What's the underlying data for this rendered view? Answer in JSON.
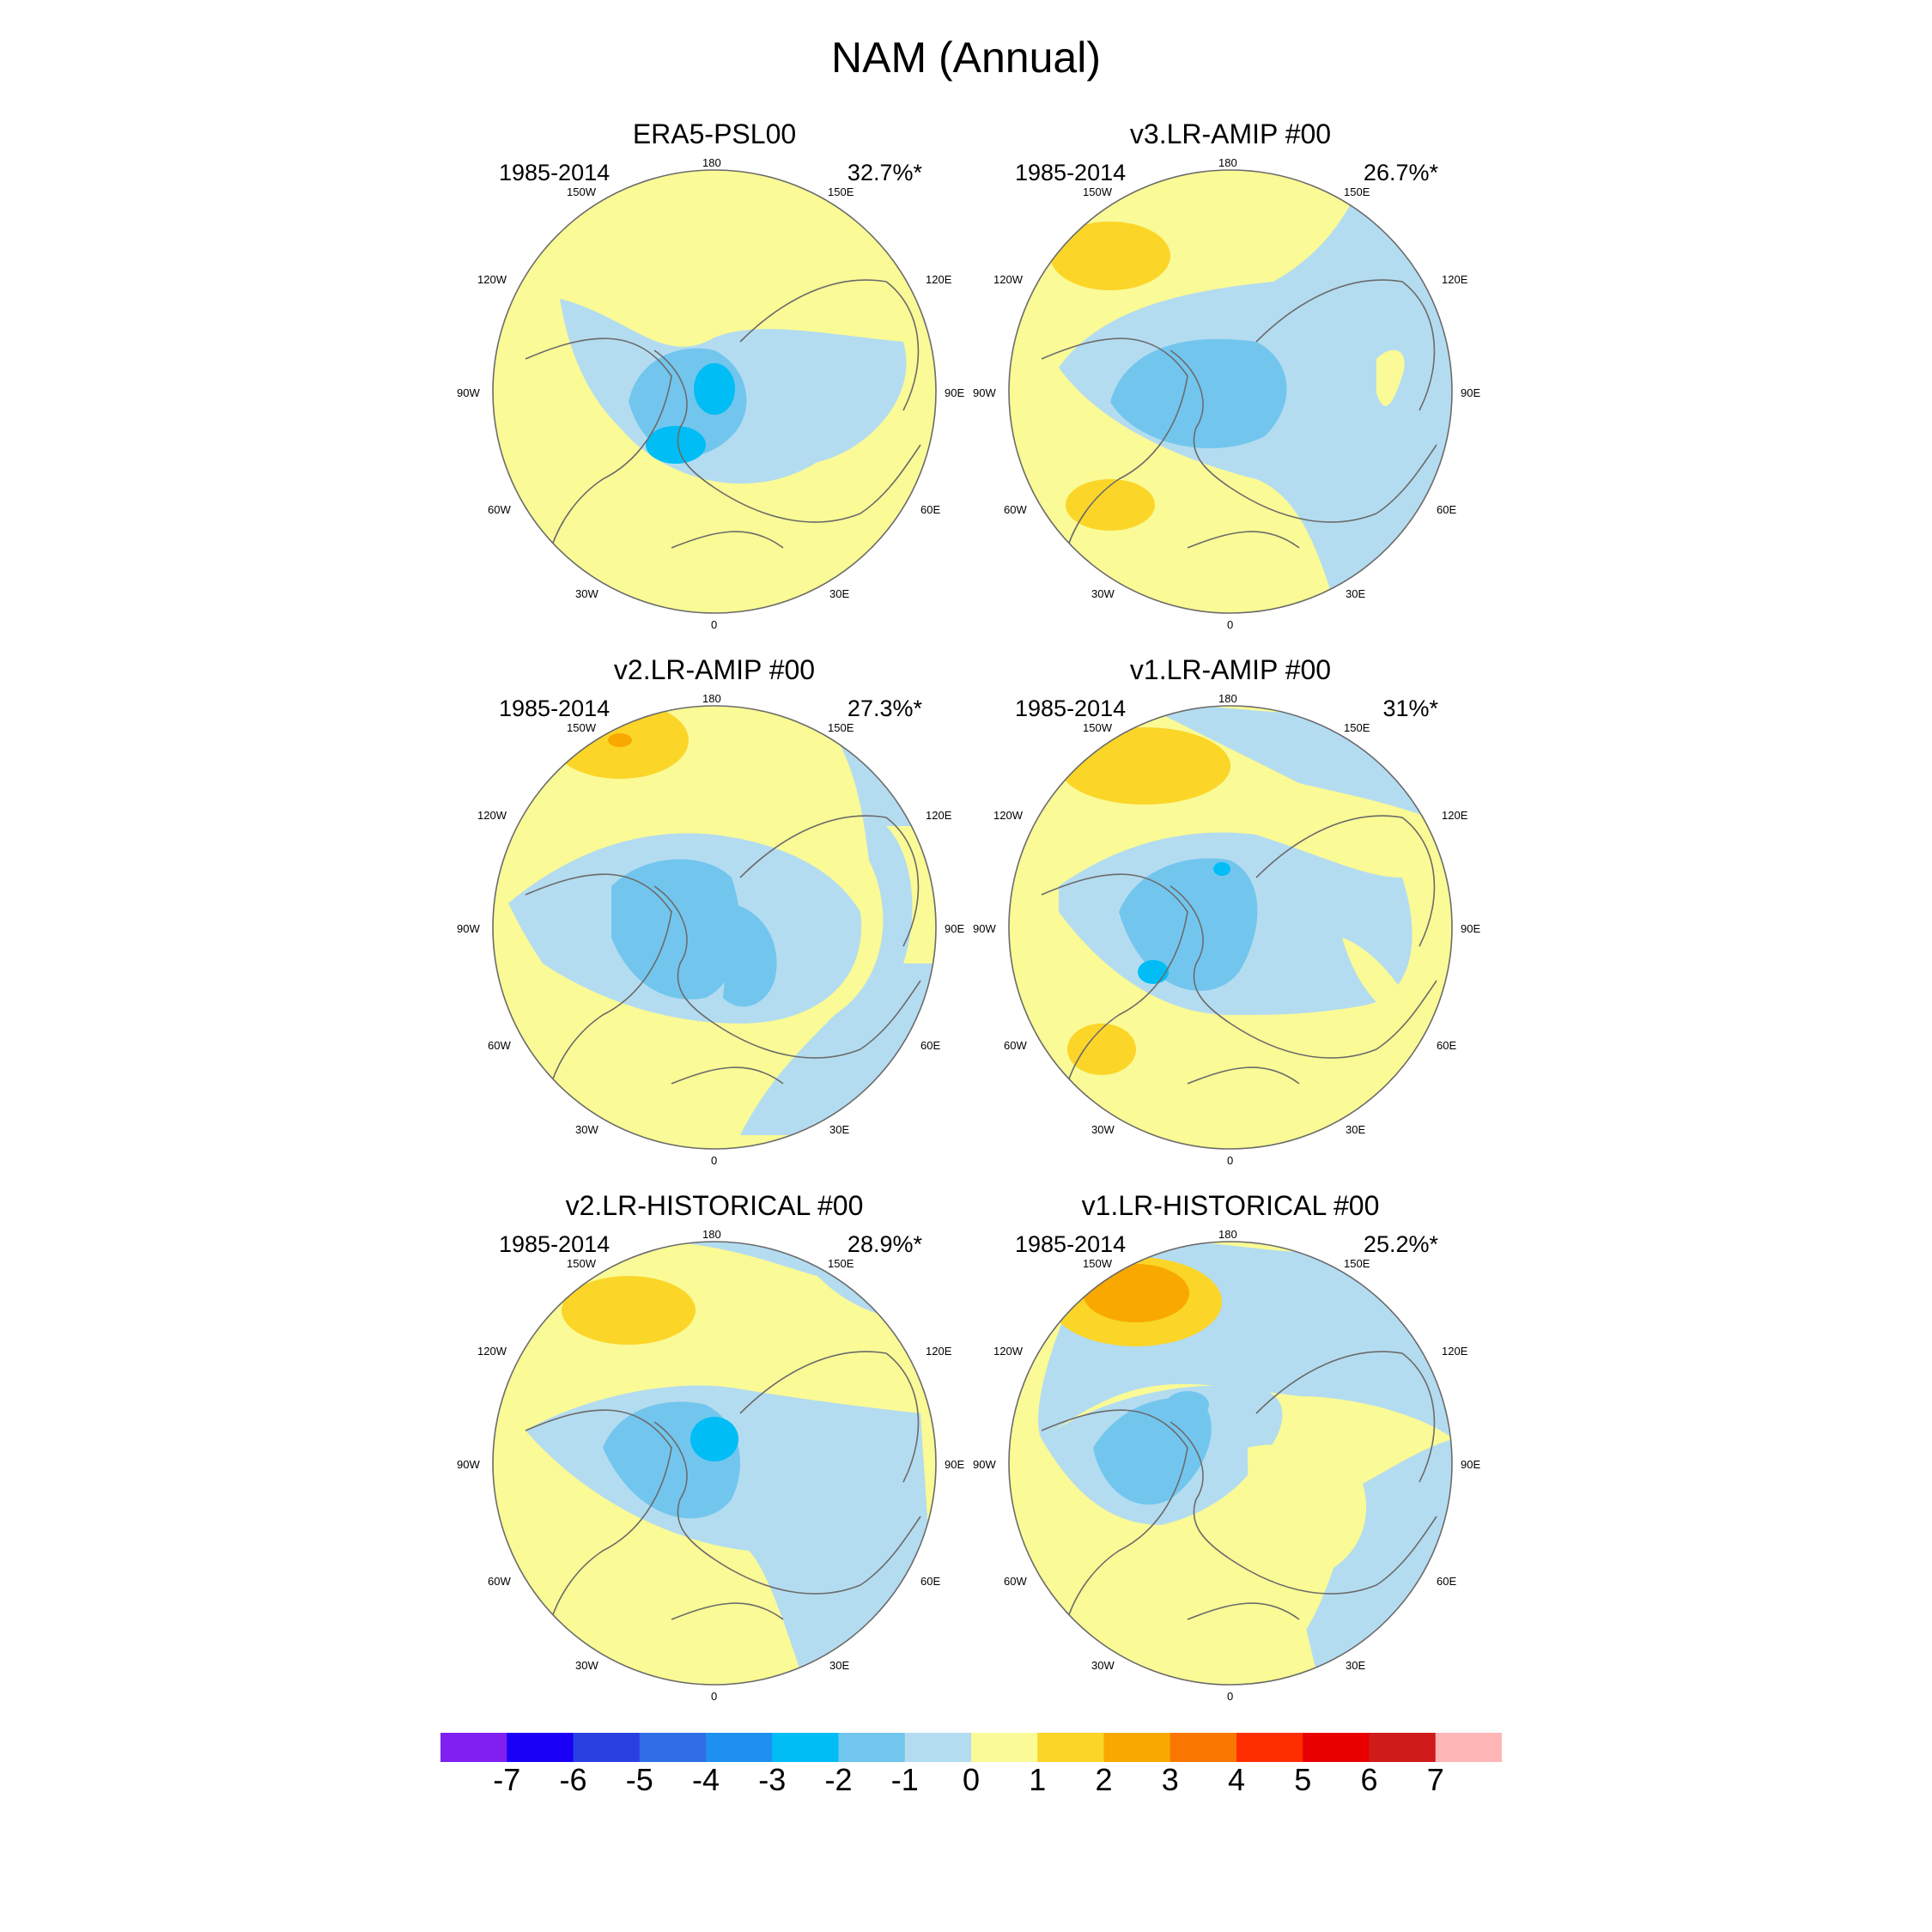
{
  "title": "NAM (Annual)",
  "colors": {
    "land_outline": "#6b6b6b",
    "frame": "#6b6b6b",
    "scale": [
      "#7f1ff0",
      "#1a00f5",
      "#2b40e0",
      "#2f6ee6",
      "#1e90f0",
      "#00bdf5",
      "#72c6ee",
      "#b4dcf0",
      "#fafa96",
      "#fbd528",
      "#f9a800",
      "#f97700",
      "#ff2e00",
      "#e80000",
      "#d01b1b",
      "#ffb6b6"
    ]
  },
  "longitude_labels": {
    "top": "180",
    "top_left": "150W",
    "top_right": "150E",
    "upper_left": "120W",
    "upper_right": "120E",
    "left": "90W",
    "right": "90E",
    "lower_left": "60W",
    "lower_right": "60E",
    "bottom_left": "30W",
    "bottom_right": "30E",
    "bottom": "0"
  },
  "panels": [
    {
      "title": "ERA5-PSL00",
      "period": "1985-2014",
      "variance": "32.7%*"
    },
    {
      "title": "v3.LR-AMIP  #00",
      "period": "1985-2014",
      "variance": "26.7%*"
    },
    {
      "title": "v2.LR-AMIP  #00",
      "period": "1985-2014",
      "variance": "27.3%*"
    },
    {
      "title": "v1.LR-AMIP  #00",
      "period": "1985-2014",
      "variance": "31%*"
    },
    {
      "title": "v2.LR-HISTORICAL  #00",
      "period": "1985-2014",
      "variance": "28.9%*"
    },
    {
      "title": "v1.LR-HISTORICAL  #00",
      "period": "1985-2014",
      "variance": "25.2%*"
    }
  ],
  "colorbar": {
    "labels": [
      "-7",
      "-6",
      "-5",
      "-4",
      "-3",
      "-2",
      "-1",
      "0",
      "1",
      "2",
      "3",
      "4",
      "5",
      "6",
      "7"
    ]
  }
}
